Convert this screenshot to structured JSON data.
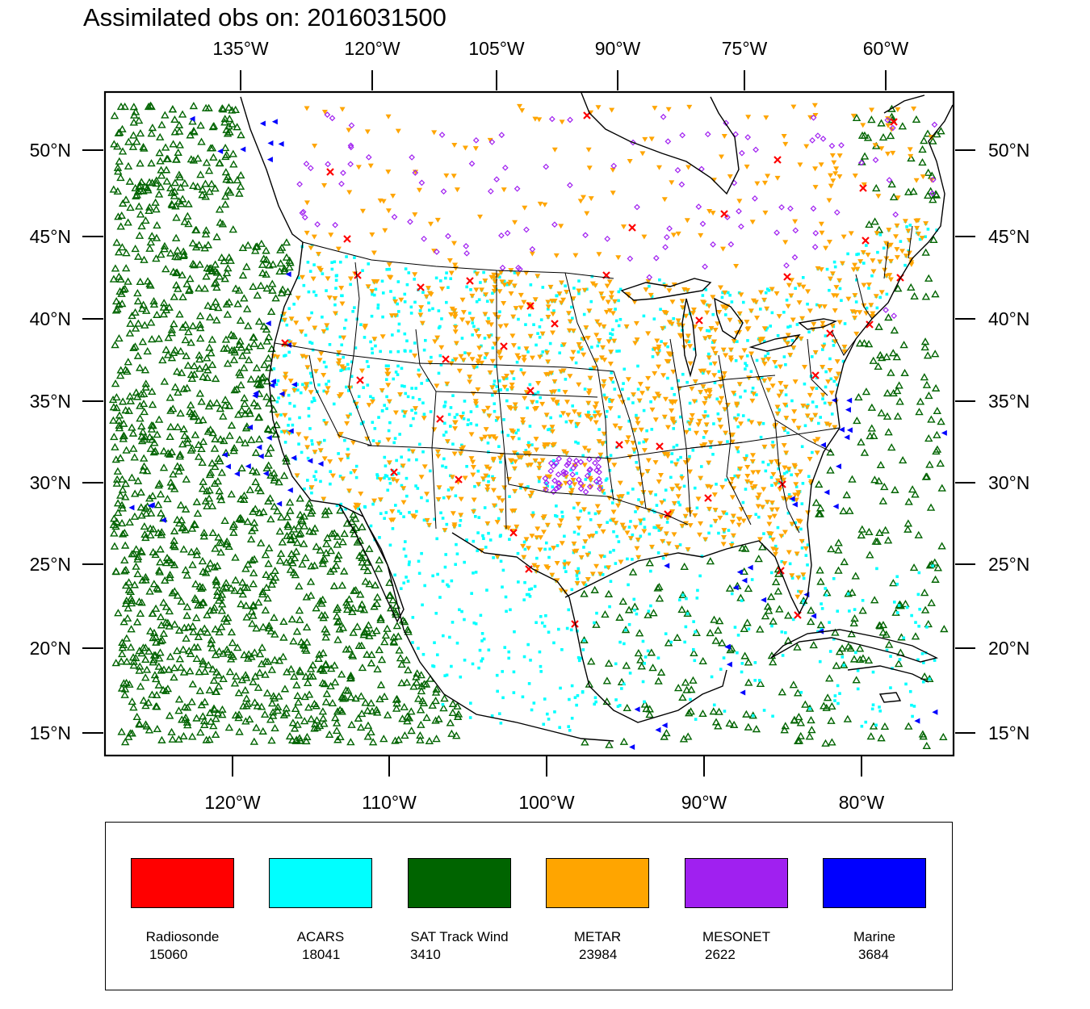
{
  "title": "Assimilated obs on: 2016031500",
  "axes": {
    "top_lon_labels": [
      "135°W",
      "120°W",
      "105°W",
      "90°W",
      "75°W",
      "60°W"
    ],
    "bottom_lon_labels": [
      "120°W",
      "110°W",
      "100°W",
      "90°W",
      "80°W"
    ],
    "left_lat_labels": [
      "50°N",
      "45°N",
      "40°N",
      "35°N",
      "30°N",
      "25°N",
      "20°N",
      "15°N"
    ],
    "right_lat_labels": [
      "50°N",
      "45°N",
      "40°N",
      "35°N",
      "30°N",
      "25°N",
      "20°N",
      "15°N"
    ]
  },
  "map": {
    "projection": "lambert-conformal",
    "extent_lon": [
      -128,
      -74
    ],
    "extent_lat": [
      14,
      53
    ],
    "coastline_color": "#000000",
    "state_borders": true
  },
  "legend": {
    "items": [
      {
        "name": "Radiosonde",
        "count": "15060",
        "color": "#ff0000",
        "marker": "x"
      },
      {
        "name": "ACARS",
        "count": "18041",
        "color": "#00ffff",
        "marker": "square"
      },
      {
        "name": "SAT Track Wind",
        "count": "3410",
        "color": "#006400",
        "marker": "triangle-up"
      },
      {
        "name": "METAR",
        "count": "23984",
        "color": "#ffa500",
        "marker": "triangle-down"
      },
      {
        "name": "MESONET",
        "count": "2622",
        "color": "#a020f0",
        "marker": "diamond"
      },
      {
        "name": "Marine",
        "count": "3684",
        "color": "#0000ff",
        "marker": "triangle-left"
      }
    ]
  }
}
